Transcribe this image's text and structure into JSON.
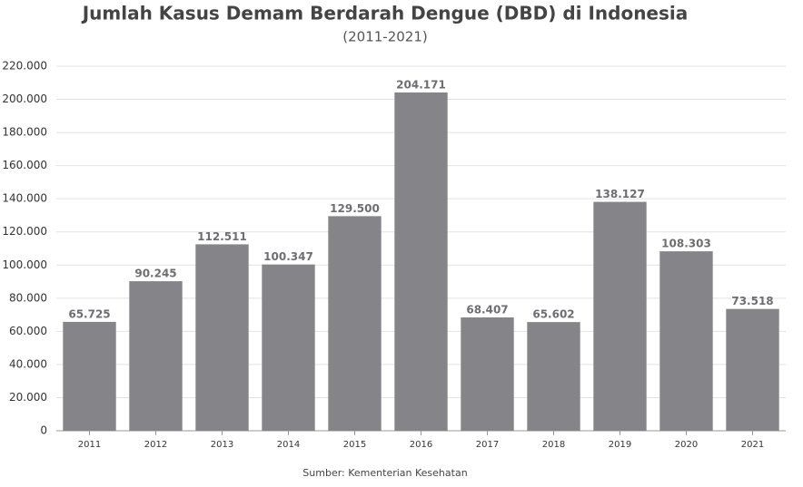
{
  "chart_data": {
    "type": "bar",
    "title": "Jumlah Kasus Demam Berdarah Dengue (DBD) di Indonesia",
    "subtitle": "(2011-2021)",
    "source": "Sumber: Kementerian Kesehatan",
    "categories": [
      "2011",
      "2012",
      "2013",
      "2014",
      "2015",
      "2016",
      "2017",
      "2018",
      "2019",
      "2020",
      "2021"
    ],
    "values": [
      65725,
      90245,
      112511,
      100347,
      129500,
      204171,
      68407,
      65602,
      138127,
      108303,
      73518
    ],
    "value_labels": [
      "65.725",
      "90.245",
      "112.511",
      "100.347",
      "129.500",
      "204.171",
      "68.407",
      "65.602",
      "138.127",
      "108.303",
      "73.518"
    ],
    "color": "#858589",
    "ylim": [
      0,
      220000
    ],
    "yticks": [
      0,
      {
        "value": 20000,
        "label": "20.000"
      },
      {
        "value": 40000,
        "label": "40.000"
      },
      {
        "value": 60000,
        "label": "60.000"
      },
      {
        "value": 80000,
        "label": "80.000"
      },
      {
        "value": 100000,
        "label": "100.000"
      },
      {
        "value": 120000,
        "label": "120.000"
      },
      {
        "value": 140000,
        "label": "140.000"
      },
      {
        "value": 160000,
        "label": "160.000"
      },
      {
        "value": 180000,
        "label": "180.000"
      },
      {
        "value": 200000,
        "label": "200.000"
      },
      {
        "value": 220000,
        "label": "220.000"
      }
    ],
    "grid": true
  }
}
